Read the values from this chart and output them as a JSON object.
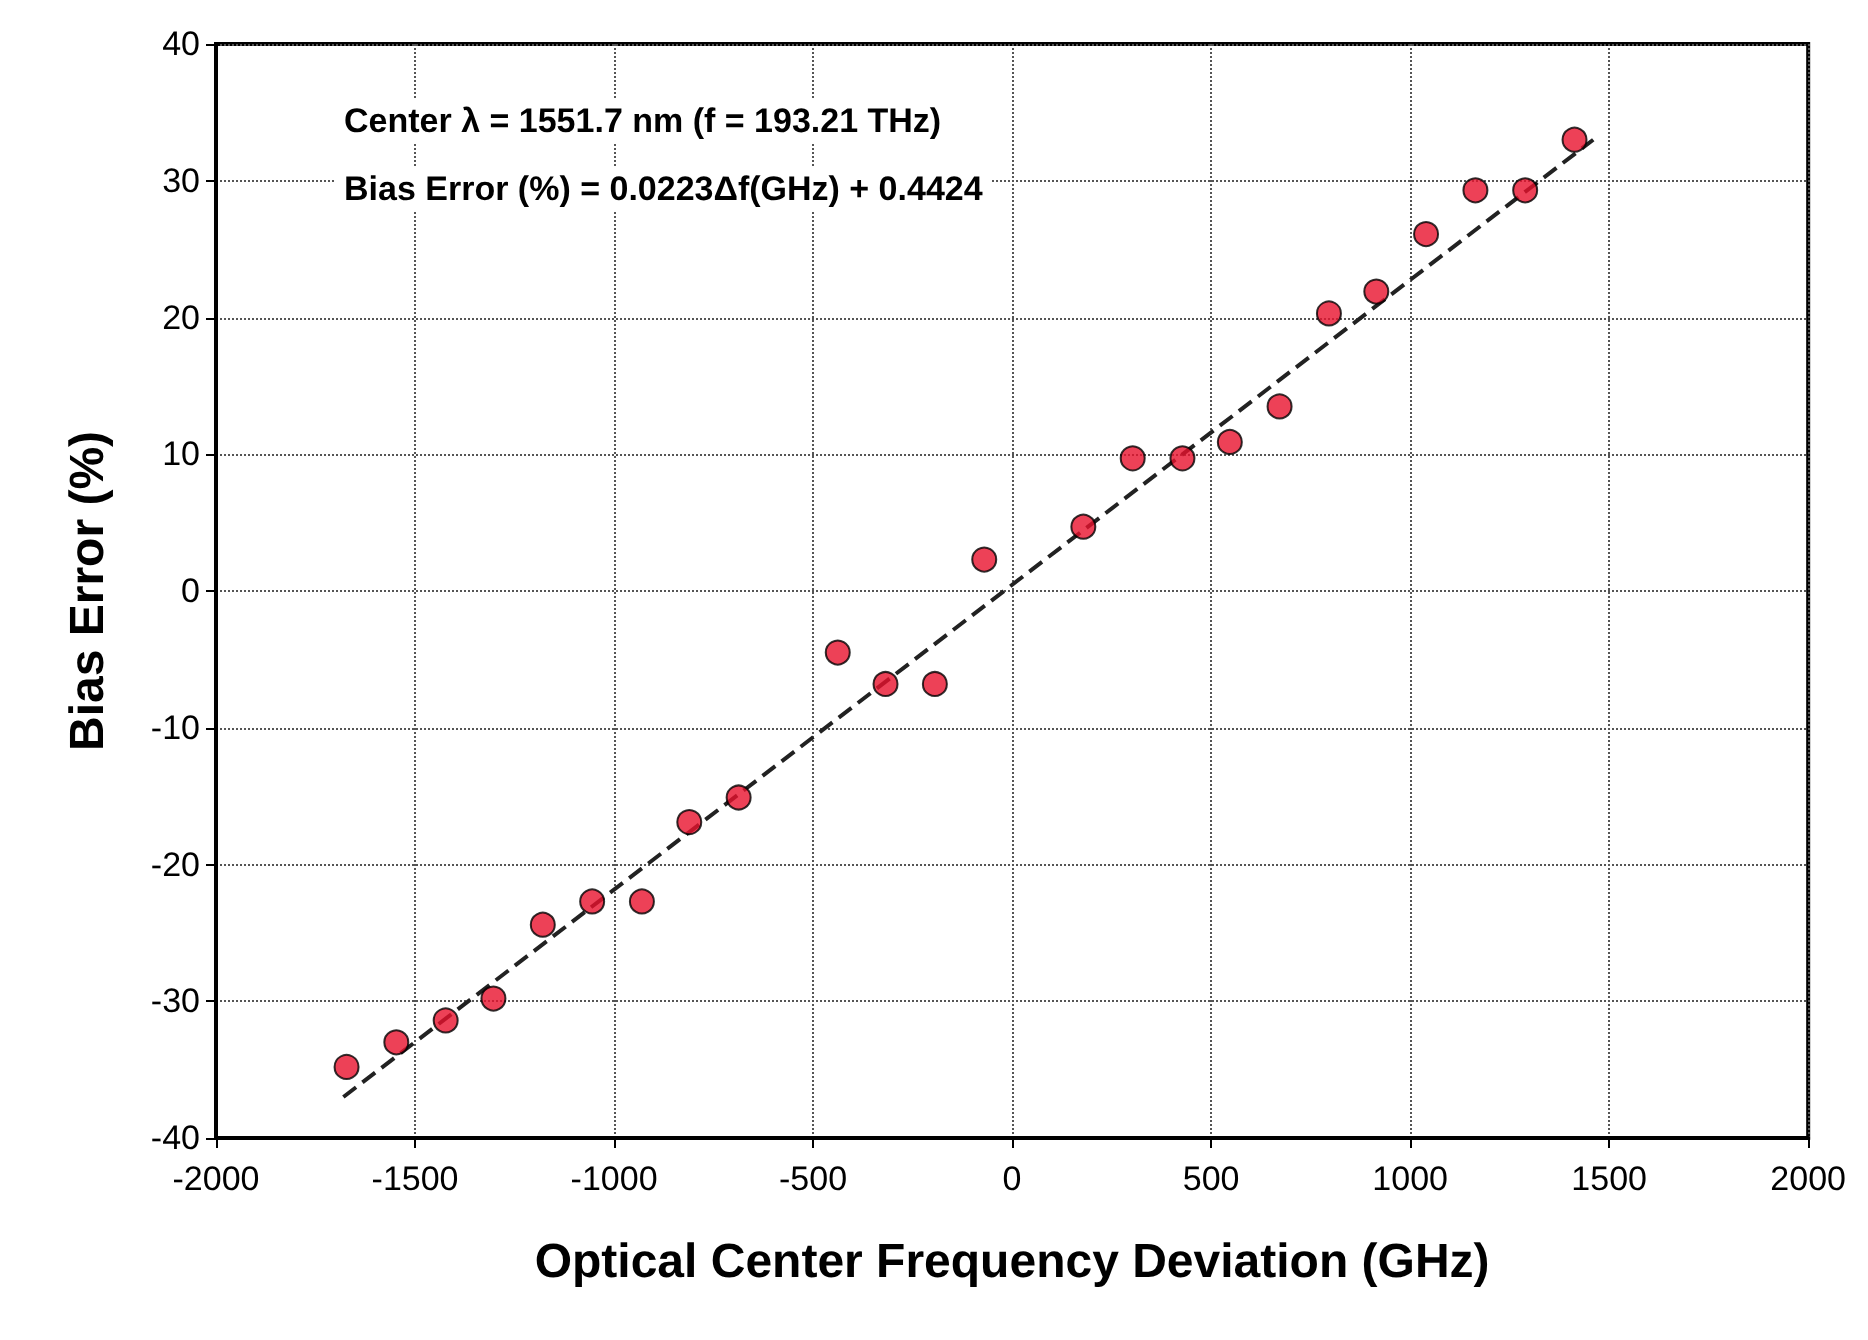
{
  "chart_data": {
    "type": "scatter",
    "xlabel": "Optical Center Frequency Deviation (GHz)",
    "ylabel": "Bias Error (%)",
    "annotations": [
      "Center λ = 1551.7 nm (f = 193.21 THz)",
      "Bias Error (%) = 0.0223Δf(GHz) + 0.4424"
    ],
    "xlim": [
      -2000,
      2000
    ],
    "xticks": [
      -2000,
      -1500,
      -1000,
      -500,
      0,
      500,
      1000,
      1500,
      2000
    ],
    "ylim": [
      -40,
      40
    ],
    "yticks": [
      -40,
      -30,
      -20,
      -10,
      0,
      10,
      20,
      30,
      40
    ],
    "grid": true,
    "marker": "circle",
    "series": [
      {
        "color": "#e8112d",
        "x": [
          -1672,
          -1547,
          -1423,
          -1303,
          -1179,
          -1055,
          -930,
          -811,
          -687,
          -438,
          -318,
          -194,
          -70,
          179,
          303,
          428,
          547,
          672,
          796,
          915,
          1040,
          1164,
          1289,
          1413
        ],
        "values": [
          -34.8,
          -33.0,
          -31.4,
          -29.8,
          -24.4,
          -22.7,
          -22.7,
          -16.9,
          -15.1,
          -4.5,
          -6.8,
          -6.8,
          2.3,
          4.7,
          9.7,
          9.7,
          10.9,
          13.5,
          20.3,
          21.9,
          26.1,
          29.3,
          29.3,
          33.0
        ]
      },
      {
        "type": "line",
        "color": "#222222",
        "line_style": "dashed",
        "marker": "none",
        "x": [
          -1680,
          1460
        ],
        "values": [
          -37.0,
          33.0
        ]
      }
    ]
  }
}
